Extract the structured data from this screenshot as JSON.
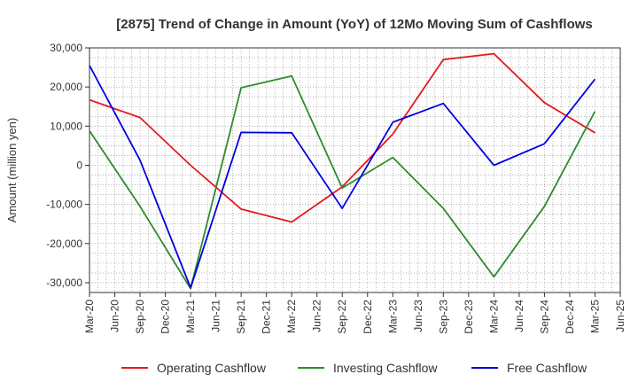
{
  "chart_data": {
    "type": "line",
    "title": "[2875]  Trend of Change in Amount (YoY) of 12Mo Moving Sum of Cashflows",
    "xlabel": "",
    "ylabel": "Amount (million yen)",
    "ylim": [
      -32500,
      30000
    ],
    "yticks": [
      30000,
      20000,
      10000,
      0,
      -10000,
      -20000,
      -30000
    ],
    "ytick_labels": [
      "30,000",
      "20,000",
      "10,000",
      "0",
      "-10,000",
      "-20,000",
      "-30,000"
    ],
    "categories": [
      "Mar-20",
      "Jun-20",
      "Sep-20",
      "Dec-20",
      "Mar-21",
      "Jun-21",
      "Sep-21",
      "Dec-21",
      "Mar-22",
      "Jun-22",
      "Sep-22",
      "Dec-22",
      "Mar-23",
      "Jun-23",
      "Sep-23",
      "Dec-23",
      "Mar-24",
      "Jun-24",
      "Sep-24",
      "Dec-24",
      "Mar-25",
      "Jun-25"
    ],
    "grid": true,
    "legend_position": "bottom",
    "series": [
      {
        "name": "Operating Cashflow",
        "color": "#e31a1c",
        "values": [
          16700,
          null,
          12200,
          null,
          0,
          null,
          -11200,
          null,
          -14500,
          null,
          -5500,
          null,
          8000,
          null,
          27000,
          null,
          28500,
          null,
          16000,
          null,
          8300,
          null
        ]
      },
      {
        "name": "Investing Cashflow",
        "color": "#2e8b2e",
        "values": [
          8800,
          null,
          -10500,
          null,
          -31500,
          null,
          19800,
          null,
          22800,
          null,
          -5800,
          null,
          2000,
          null,
          -11000,
          null,
          -28500,
          null,
          -10500,
          null,
          13800,
          null
        ]
      },
      {
        "name": "Free Cashflow",
        "color": "#0000dd",
        "values": [
          25500,
          null,
          1300,
          null,
          -31300,
          null,
          8400,
          null,
          8300,
          null,
          -11000,
          null,
          11000,
          null,
          15800,
          null,
          0,
          null,
          5500,
          null,
          22000,
          null
        ]
      }
    ]
  }
}
